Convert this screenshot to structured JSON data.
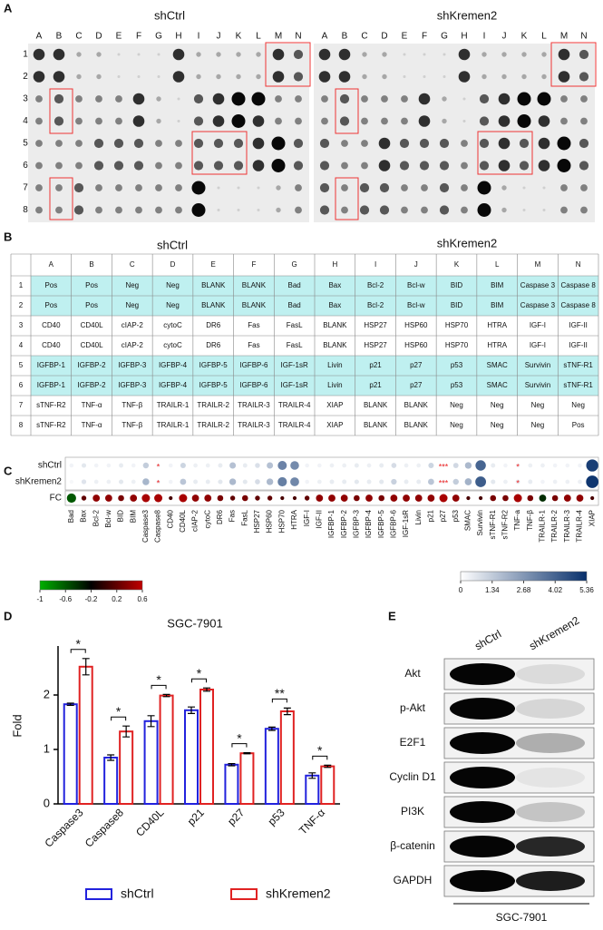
{
  "panel_a": {
    "label": "A",
    "titles": [
      "shCtrl",
      "shKremen2"
    ],
    "columns": [
      "A",
      "B",
      "C",
      "D",
      "E",
      "F",
      "G",
      "H",
      "I",
      "J",
      "K",
      "L",
      "M",
      "N"
    ],
    "rows": [
      "1",
      "2",
      "3",
      "4",
      "5",
      "6",
      "7",
      "8"
    ]
  },
  "panel_b": {
    "label": "B",
    "titles": [
      "shCtrl",
      "shKremen2"
    ],
    "header": [
      "A",
      "B",
      "C",
      "D",
      "E",
      "F",
      "G",
      "H",
      "I",
      "J",
      "K",
      "L",
      "M",
      "N"
    ],
    "rows": [
      {
        "label": "1",
        "highlight": true,
        "cells": [
          "Pos",
          "Pos",
          "Neg",
          "Neg",
          "BLANK",
          "BLANK",
          "Bad",
          "Bax",
          "Bcl-2",
          "Bcl-w",
          "BID",
          "BIM",
          "Caspase 3",
          "Caspase 8"
        ]
      },
      {
        "label": "2",
        "highlight": true,
        "cells": [
          "Pos",
          "Pos",
          "Neg",
          "Neg",
          "BLANK",
          "BLANK",
          "Bad",
          "Bax",
          "Bcl-2",
          "Bcl-w",
          "BID",
          "BIM",
          "Caspase 3",
          "Caspase 8"
        ]
      },
      {
        "label": "3",
        "highlight": false,
        "cells": [
          "CD40",
          "CD40L",
          "cIAP-2",
          "cytoC",
          "DR6",
          "Fas",
          "FasL",
          "BLANK",
          "HSP27",
          "HSP60",
          "HSP70",
          "HTRA",
          "IGF-I",
          "IGF-II"
        ]
      },
      {
        "label": "4",
        "highlight": false,
        "cells": [
          "CD40",
          "CD40L",
          "cIAP-2",
          "cytoC",
          "DR6",
          "Fas",
          "FasL",
          "BLANK",
          "HSP27",
          "HSP60",
          "HSP70",
          "HTRA",
          "IGF-I",
          "IGF-II"
        ]
      },
      {
        "label": "5",
        "highlight": true,
        "cells": [
          "IGFBP-1",
          "IGFBP-2",
          "IGFBP-3",
          "IGFBP-4",
          "IGFBP-5",
          "IGFBP-6",
          "IGF-1sR",
          "Livin",
          "p21",
          "p27",
          "p53",
          "SMAC",
          "Survivin",
          "sTNF-R1"
        ]
      },
      {
        "label": "6",
        "highlight": true,
        "cells": [
          "IGFBP-1",
          "IGFBP-2",
          "IGFBP-3",
          "IGFBP-4",
          "IGFBP-5",
          "IGFBP-6",
          "IGF-1sR",
          "Livin",
          "p21",
          "p27",
          "p53",
          "SMAC",
          "Survivin",
          "sTNF-R1"
        ]
      },
      {
        "label": "7",
        "highlight": false,
        "cells": [
          "sTNF-R2",
          "TNF-α",
          "TNF-β",
          "TRAILR-1",
          "TRAILR-2",
          "TRAILR-3",
          "TRAILR-4",
          "XIAP",
          "BLANK",
          "BLANK",
          "Neg",
          "Neg",
          "Neg",
          "Neg"
        ]
      },
      {
        "label": "8",
        "highlight": false,
        "cells": [
          "sTNF-R2",
          "TNF-α",
          "TNF-β",
          "TRAILR-1",
          "TRAILR-2",
          "TRAILR-3",
          "TRAILR-4",
          "XIAP",
          "BLANK",
          "BLANK",
          "Neg",
          "Neg",
          "Neg",
          "Pos"
        ]
      }
    ]
  },
  "chart_data": [
    {
      "type": "heatmap",
      "panel_label": "C",
      "categories": [
        "Bad",
        "Bax",
        "Bcl-2",
        "Bcl-w",
        "BID",
        "BIM",
        "Caspase3",
        "Caspase8",
        "CD40",
        "CD40L",
        "cIAP-2",
        "cytoC",
        "DR6",
        "Fas",
        "FasL",
        "HSP27",
        "HSP60",
        "HSP70",
        "HTRA",
        "IGF-I",
        "IGF-II",
        "IGFBP-1",
        "IGFBP-2",
        "IGFBP-3",
        "IGFBP-4",
        "IGFBP-5",
        "IGFBP-6",
        "IGF-1sR",
        "Livin",
        "p21",
        "p27",
        "p53",
        "SMAC",
        "Survivin",
        "sTNF-R1",
        "sTNF-R2",
        "TNF-a",
        "TNF-β",
        "TRAILR-1",
        "TRAILR-2",
        "TRAILR-3",
        "TRAILR-4",
        "XIAP"
      ],
      "series": [
        {
          "name": "shCtrl",
          "scale": 1,
          "values": [
            0.3,
            0.6,
            0.3,
            0.3,
            0.5,
            0.3,
            1.3,
            0.2,
            0.3,
            1.1,
            0.4,
            0.4,
            0.5,
            1.6,
            0.5,
            0.8,
            1.6,
            3.2,
            3.0,
            0.3,
            0.3,
            0.4,
            0.4,
            0.5,
            0.4,
            0.5,
            0.9,
            0.4,
            0.4,
            1.1,
            0.2,
            1.0,
            1.8,
            4.0,
            0.5,
            0.3,
            0.3,
            0.4,
            0.4,
            0.3,
            0.3,
            0.3,
            5.0
          ]
        },
        {
          "name": "shKremen2",
          "scale": 1,
          "values": [
            0.2,
            0.7,
            0.4,
            0.4,
            0.6,
            0.4,
            1.9,
            0.3,
            0.3,
            1.5,
            0.5,
            0.5,
            0.6,
            1.8,
            0.6,
            0.9,
            1.8,
            3.3,
            3.1,
            0.3,
            0.4,
            0.5,
            0.5,
            0.6,
            0.5,
            0.6,
            1.2,
            0.5,
            0.5,
            1.5,
            0.3,
            1.3,
            2.0,
            4.2,
            0.6,
            0.4,
            0.5,
            0.5,
            0.3,
            0.4,
            0.4,
            0.4,
            5.2
          ]
        },
        {
          "name": "FC",
          "scale": 0,
          "values": [
            -0.6,
            0.2,
            0.4,
            0.4,
            0.3,
            0.4,
            0.5,
            0.5,
            0.1,
            0.5,
            0.4,
            0.4,
            0.3,
            0.2,
            0.3,
            0.2,
            0.2,
            0.1,
            0.1,
            0.2,
            0.4,
            0.4,
            0.4,
            0.3,
            0.4,
            0.3,
            0.4,
            0.4,
            0.4,
            0.4,
            0.5,
            0.4,
            0.1,
            0.1,
            0.3,
            0.3,
            0.5,
            0.3,
            -0.4,
            0.3,
            0.4,
            0.4,
            0.1
          ]
        }
      ],
      "significance": [
        null,
        null,
        null,
        null,
        null,
        null,
        null,
        "*",
        null,
        null,
        null,
        null,
        null,
        null,
        null,
        null,
        null,
        null,
        null,
        null,
        null,
        null,
        null,
        null,
        null,
        null,
        null,
        null,
        null,
        null,
        "***",
        null,
        null,
        null,
        null,
        null,
        "*",
        null,
        null,
        null,
        null,
        null,
        null
      ],
      "colorbars": [
        {
          "colors": [
            "#00b000",
            "#000000",
            "#c00000"
          ],
          "lim": [
            -1,
            0.6
          ],
          "ticks": [
            -1,
            -0.6,
            -0.2,
            0.2,
            0.6
          ]
        },
        {
          "colors": [
            "#ffffff",
            "#08306b"
          ],
          "lim": [
            0,
            5.36
          ],
          "ticks": [
            0,
            1.34,
            2.68,
            4.02,
            5.36
          ]
        }
      ]
    },
    {
      "type": "bar",
      "panel_label": "D",
      "title": "SGC-7901",
      "y_label": "Fold",
      "categories": [
        "Caspase3",
        "Caspase8",
        "CD40L",
        "p21",
        "p27",
        "p53",
        "TNF-α"
      ],
      "series": [
        {
          "name": "shCtrl",
          "color": "#2222dd",
          "values": [
            1.83,
            0.85,
            1.52,
            1.72,
            0.72,
            1.38,
            0.52
          ],
          "errors": [
            0.02,
            0.05,
            0.1,
            0.06,
            0.02,
            0.03,
            0.05
          ]
        },
        {
          "name": "shKremen2",
          "color": "#e02222",
          "values": [
            2.52,
            1.33,
            1.99,
            2.1,
            0.93,
            1.7,
            0.69
          ],
          "errors": [
            0.15,
            0.1,
            0.02,
            0.03,
            0.01,
            0.06,
            0.02
          ]
        }
      ],
      "significance": [
        "*",
        "*",
        "*",
        "*",
        "*",
        "**",
        "*"
      ],
      "ylim": [
        0,
        2.9
      ],
      "yticks": [
        0,
        1,
        2
      ]
    }
  ],
  "panel_e": {
    "label": "E",
    "lanes": [
      "shCtrl",
      "shKremen2"
    ],
    "proteins": [
      "Akt",
      "p-Akt",
      "E2F1",
      "Cyclin D1",
      "PI3K",
      "β-catenin",
      "GAPDH"
    ],
    "cell_line": "SGC-7901"
  }
}
